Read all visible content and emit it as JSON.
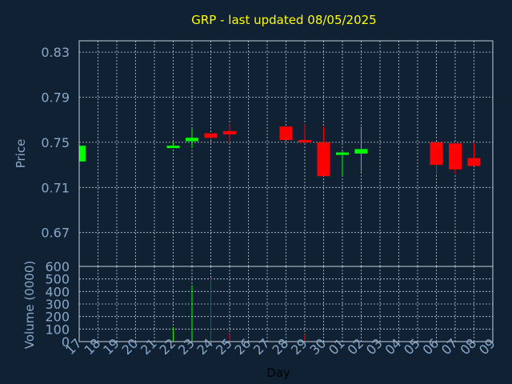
{
  "chart_data": {
    "type": "candlestick",
    "title": "GRP - last updated 08/05/2025",
    "xlabel": "Day",
    "ylabel_price": "Price",
    "ylabel_volume": "Volume (0000)",
    "categories": [
      "17",
      "18",
      "19",
      "20",
      "21",
      "22",
      "23",
      "24",
      "25",
      "26",
      "27",
      "28",
      "29",
      "30",
      "01",
      "02",
      "03",
      "04",
      "05",
      "06",
      "07",
      "08",
      "09"
    ],
    "price_ticks": [
      "0.83",
      "0.79",
      "0.75",
      "0.71",
      "0.67"
    ],
    "price_range": [
      0.64,
      0.84
    ],
    "volume_ticks": [
      "600",
      "500",
      "400",
      "300",
      "200",
      "100",
      "0"
    ],
    "volume_range": [
      0,
      600
    ],
    "grid": true,
    "colors": {
      "up": "#00ff00",
      "down": "#ff0000",
      "background": "#0f2133",
      "title": "#ffff00",
      "ticks": "#8aa8c8"
    },
    "candles": [
      {
        "day": "17",
        "open": 0.733,
        "high": 0.747,
        "low": 0.733,
        "close": 0.747,
        "volume": 0
      },
      {
        "day": "22",
        "open": 0.746,
        "high": 0.75,
        "low": 0.745,
        "close": 0.747,
        "volume": 110
      },
      {
        "day": "23",
        "open": 0.751,
        "high": 0.762,
        "low": 0.745,
        "close": 0.754,
        "volume": 450
      },
      {
        "day": "24",
        "open": 0.758,
        "high": 0.758,
        "low": 0.752,
        "close": 0.754,
        "volume": 510
      },
      {
        "day": "25",
        "open": 0.76,
        "high": 0.766,
        "low": 0.75,
        "close": 0.757,
        "volume": 60
      },
      {
        "day": "28",
        "open": 0.764,
        "high": 0.764,
        "low": 0.752,
        "close": 0.752,
        "volume": 0
      },
      {
        "day": "29",
        "open": 0.752,
        "high": 0.766,
        "low": 0.749,
        "close": 0.75,
        "volume": 60
      },
      {
        "day": "30",
        "open": 0.75,
        "high": 0.764,
        "low": 0.72,
        "close": 0.72,
        "volume": 0
      },
      {
        "day": "01",
        "open": 0.74,
        "high": 0.742,
        "low": 0.72,
        "close": 0.741,
        "volume": 0
      },
      {
        "day": "02",
        "open": 0.74,
        "high": 0.764,
        "low": 0.724,
        "close": 0.744,
        "volume": 0
      },
      {
        "day": "06",
        "open": 0.75,
        "high": 0.75,
        "low": 0.721,
        "close": 0.73,
        "volume": 0
      },
      {
        "day": "07",
        "open": 0.749,
        "high": 0.749,
        "low": 0.722,
        "close": 0.726,
        "volume": 0
      },
      {
        "day": "08",
        "open": 0.736,
        "high": 0.749,
        "low": 0.729,
        "close": 0.729,
        "volume": 0
      }
    ]
  }
}
